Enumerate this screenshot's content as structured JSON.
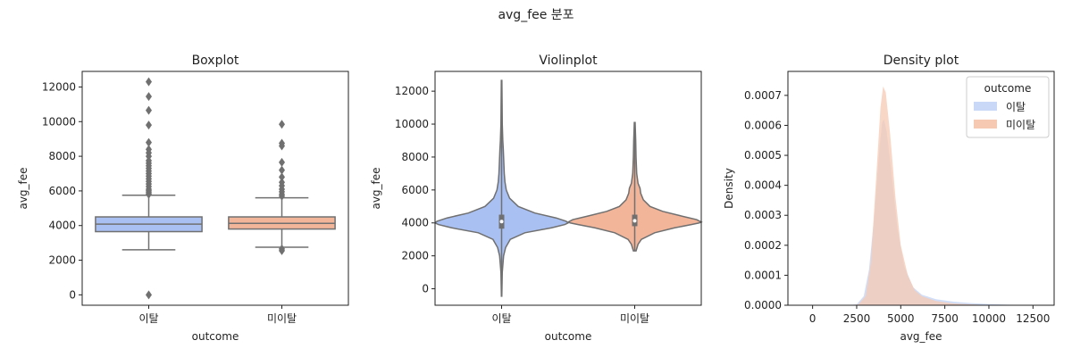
{
  "figure": {
    "title": "avg_fee 분포"
  },
  "colors": {
    "churn": "#a9c0f2",
    "stay": "#f2b59a",
    "churn_fill": "#c9d8f7",
    "stay_fill": "#f6c9b3",
    "line": "#707070",
    "overlap": "#d4cce0"
  },
  "chart_data": [
    {
      "type": "box",
      "title": "Boxplot",
      "xlabel": "outcome",
      "ylabel": "avg_fee",
      "categories": [
        "이탈",
        "미이탈"
      ],
      "ylim": [
        -600,
        12900
      ],
      "yticks": [
        0,
        2000,
        4000,
        6000,
        8000,
        10000,
        12000
      ],
      "series": [
        {
          "name": "이탈",
          "min": 2600,
          "q1": 3650,
          "median": 4080,
          "q3": 4500,
          "max": 5750,
          "outliers": [
            0,
            5800,
            5900,
            6000,
            6100,
            6250,
            6400,
            6550,
            6700,
            6850,
            7000,
            7150,
            7300,
            7450,
            7600,
            7750,
            8000,
            8200,
            8400,
            8800,
            9800,
            10650,
            11450,
            12300
          ]
        },
        {
          "name": "미이탈",
          "min": 2750,
          "q1": 3800,
          "median": 4130,
          "q3": 4500,
          "max": 5600,
          "outliers": [
            2550,
            2650,
            5700,
            5800,
            5950,
            6100,
            6300,
            6500,
            6800,
            7200,
            7650,
            8600,
            8750,
            9850
          ]
        }
      ]
    },
    {
      "type": "violin",
      "title": "Violinplot",
      "xlabel": "outcome",
      "ylabel": "avg_fee",
      "categories": [
        "이탈",
        "미이탈"
      ],
      "ylim": [
        -1000,
        13200
      ],
      "yticks": [
        0,
        2000,
        4000,
        6000,
        8000,
        10000,
        12000
      ],
      "series": [
        {
          "name": "이탈",
          "q1": 3650,
          "median": 4080,
          "q3": 4500,
          "min": -450,
          "max": 12650,
          "profile": [
            [
              -450,
              0.003
            ],
            [
              1000,
              0.01
            ],
            [
              2000,
              0.03
            ],
            [
              2500,
              0.06
            ],
            [
              3000,
              0.13
            ],
            [
              3400,
              0.35
            ],
            [
              3700,
              0.75
            ],
            [
              3900,
              0.95
            ],
            [
              4000,
              1.0
            ],
            [
              4100,
              0.97
            ],
            [
              4300,
              0.82
            ],
            [
              4600,
              0.5
            ],
            [
              5000,
              0.25
            ],
            [
              5500,
              0.12
            ],
            [
              6000,
              0.07
            ],
            [
              6500,
              0.05
            ],
            [
              7000,
              0.04
            ],
            [
              7500,
              0.035
            ],
            [
              8000,
              0.03
            ],
            [
              8500,
              0.025
            ],
            [
              9000,
              0.018
            ],
            [
              10000,
              0.01
            ],
            [
              11000,
              0.008
            ],
            [
              12650,
              0.004
            ]
          ]
        },
        {
          "name": "미이탈",
          "q1": 3800,
          "median": 4130,
          "q3": 4500,
          "min": 2300,
          "max": 10100,
          "profile": [
            [
              2300,
              0.02
            ],
            [
              2700,
              0.05
            ],
            [
              3000,
              0.1
            ],
            [
              3400,
              0.3
            ],
            [
              3700,
              0.6
            ],
            [
              3900,
              0.85
            ],
            [
              4000,
              0.97
            ],
            [
              4050,
              1.0
            ],
            [
              4200,
              0.93
            ],
            [
              4400,
              0.72
            ],
            [
              4700,
              0.42
            ],
            [
              5000,
              0.23
            ],
            [
              5400,
              0.13
            ],
            [
              5800,
              0.09
            ],
            [
              6100,
              0.08
            ],
            [
              6400,
              0.05
            ],
            [
              7000,
              0.03
            ],
            [
              8000,
              0.02
            ],
            [
              9000,
              0.015
            ],
            [
              10100,
              0.006
            ]
          ]
        }
      ],
      "max_halfwidth": 0.5
    },
    {
      "type": "area",
      "title": "Density plot",
      "xlabel": "avg_fee",
      "ylabel": "Density",
      "xlim": [
        -1400,
        13700
      ],
      "ylim": [
        0,
        0.00078
      ],
      "xticks": [
        0,
        2500,
        5000,
        7500,
        10000,
        12500
      ],
      "yticks": [
        0.0,
        0.0001,
        0.0002,
        0.0003,
        0.0004,
        0.0005,
        0.0006,
        0.0007
      ],
      "ytick_labels": [
        "0.0000",
        "0.0001",
        "0.0002",
        "0.0003",
        "0.0004",
        "0.0005",
        "0.0006",
        "0.0007"
      ],
      "legend": {
        "title": "outcome",
        "position": "top-right"
      },
      "series": [
        {
          "name": "이탈",
          "points": [
            [
              -500,
              0
            ],
            [
              2000,
              0
            ],
            [
              2500,
              3e-06
            ],
            [
              2900,
              3e-05
            ],
            [
              3200,
              0.00012
            ],
            [
              3500,
              0.0003
            ],
            [
              3800,
              0.00053
            ],
            [
              3950,
              0.00061
            ],
            [
              4050,
              0.00062
            ],
            [
              4200,
              0.00058
            ],
            [
              4500,
              0.00043
            ],
            [
              4800,
              0.00026
            ],
            [
              5200,
              0.00013
            ],
            [
              5700,
              6e-05
            ],
            [
              6200,
              3.5e-05
            ],
            [
              7000,
              2e-05
            ],
            [
              8000,
              1.2e-05
            ],
            [
              9000,
              7e-06
            ],
            [
              10000,
              4e-06
            ],
            [
              11000,
              2e-06
            ],
            [
              12000,
              1e-06
            ],
            [
              12800,
              0
            ]
          ]
        },
        {
          "name": "미이탈",
          "points": [
            [
              2200,
              0
            ],
            [
              2600,
              3e-06
            ],
            [
              3000,
              3e-05
            ],
            [
              3300,
              0.00014
            ],
            [
              3600,
              0.00042
            ],
            [
              3850,
              0.00066
            ],
            [
              4000,
              0.00073
            ],
            [
              4150,
              0.00071
            ],
            [
              4400,
              0.00057
            ],
            [
              4700,
              0.00036
            ],
            [
              5000,
              0.0002
            ],
            [
              5400,
              0.0001
            ],
            [
              5800,
              5e-05
            ],
            [
              6200,
              3e-05
            ],
            [
              7000,
              1.4e-05
            ],
            [
              8000,
              6e-06
            ],
            [
              9000,
              3e-06
            ],
            [
              10000,
              0
            ]
          ]
        }
      ]
    }
  ]
}
